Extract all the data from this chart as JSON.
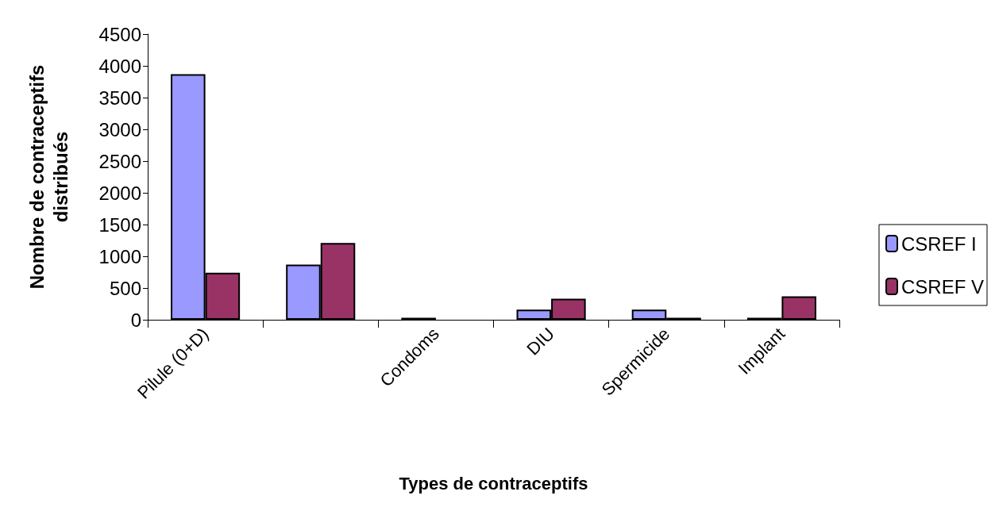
{
  "chart_data": {
    "type": "bar",
    "xlabel": "Types de contraceptifs",
    "ylabel": "Nombre de contraceptifs\ndistribués",
    "categories": [
      "Pilule (0+D)",
      null,
      "Condoms",
      "DIU",
      "Spermicide",
      "Implant"
    ],
    "series": [
      {
        "name": "CSREF I",
        "color": "#9999ff",
        "values": [
          3870,
          870,
          30,
          160,
          160,
          30
        ]
      },
      {
        "name": "CSREF V",
        "color": "#993366",
        "values": [
          740,
          1210,
          null,
          330,
          30,
          370
        ]
      }
    ],
    "ylim": [
      0,
      4500
    ],
    "yticks": [
      0,
      500,
      1000,
      1500,
      2000,
      2500,
      3000,
      3500,
      4000,
      4500
    ],
    "grid": false,
    "legend": "right"
  }
}
